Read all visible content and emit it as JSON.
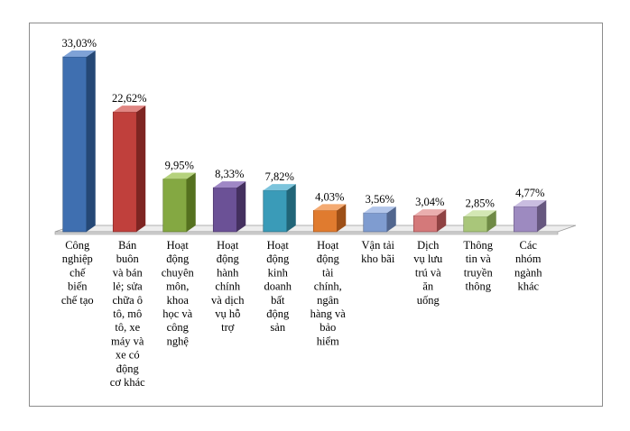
{
  "chart_data": {
    "type": "bar",
    "three_d": true,
    "categories": [
      [
        "Công",
        "nghiệp",
        "chế",
        "biến",
        "chế tạo"
      ],
      [
        "Bán",
        "buôn",
        "và bán",
        "lẻ; sửa",
        "chữa ô",
        "tô, mô",
        "tô, xe",
        "máy và",
        "xe có",
        "động",
        "cơ khác"
      ],
      [
        "Hoạt",
        "động",
        "chuyên",
        "môn,",
        "khoa",
        "học và",
        "công",
        "nghệ"
      ],
      [
        "Hoạt",
        "động",
        "hành",
        "chính",
        "và dịch",
        "vụ hỗ",
        "trợ"
      ],
      [
        "Hoạt",
        "động",
        "kinh",
        "doanh",
        "bất",
        "động",
        "sản"
      ],
      [
        "Hoạt",
        "động",
        "tài",
        "chính,",
        "ngân",
        "hàng và",
        "bảo",
        "hiểm"
      ],
      [
        "Vận tải",
        "kho bãi"
      ],
      [
        "Dịch",
        "vụ lưu",
        "trú và",
        "ăn",
        "uống"
      ],
      [
        "Thông",
        "tin và",
        "truyền",
        "thông"
      ],
      [
        "Các",
        "nhóm",
        "ngành",
        "khác"
      ]
    ],
    "values": [
      33.03,
      22.62,
      9.95,
      8.33,
      7.82,
      4.03,
      3.56,
      3.04,
      2.85,
      4.77
    ],
    "data_labels": [
      "33,03%",
      "22,62%",
      "9,95%",
      "8,33%",
      "7,82%",
      "4,03%",
      "3,56%",
      "3,04%",
      "2,85%",
      "4,77%"
    ],
    "colors": {
      "front": [
        "#3f6fb0",
        "#c0403c",
        "#84a842",
        "#6b5196",
        "#3a9bb8",
        "#e07b2f",
        "#7f9cd0",
        "#d4797a",
        "#a9c67a",
        "#9d8ac0"
      ],
      "side": [
        "#254876",
        "#7e2522",
        "#55711f",
        "#44305f",
        "#216578",
        "#9d4f17",
        "#51668e",
        "#8f4243",
        "#6f8a45",
        "#66577f"
      ],
      "top": [
        "#7fa2d6",
        "#e08683",
        "#b5d27d",
        "#9f87c6",
        "#7cc4dc",
        "#f4aa72",
        "#b3c6ea",
        "#eaaeae",
        "#d3e7b4",
        "#c9bde0"
      ]
    },
    "ylim": [
      0,
      35
    ],
    "grid": false,
    "legend": false,
    "title": "",
    "xlabel": "",
    "ylabel": ""
  }
}
